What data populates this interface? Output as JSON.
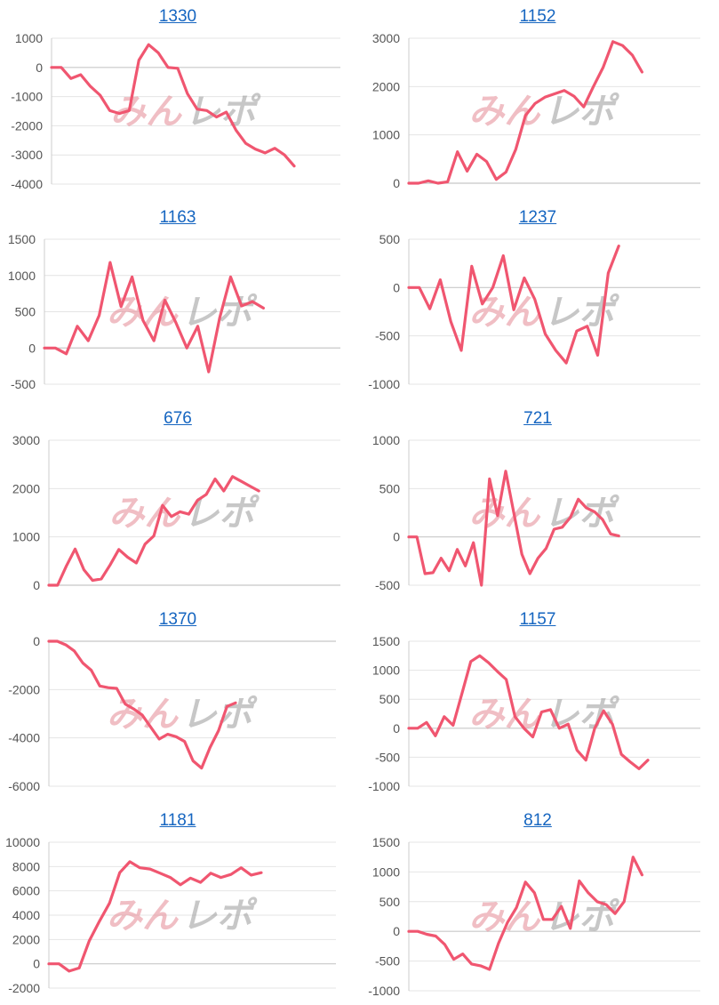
{
  "colors": {
    "line": "#f05670",
    "watermark_kana": "#e58a95",
    "watermark_latin": "#9a9a9a",
    "title_link": "#1565c0"
  },
  "watermark_icon": "minrepo-logo-watermark",
  "chart_data": [
    {
      "type": "line",
      "title": "1330",
      "ylim": [
        -4000,
        1000
      ],
      "yticks": [
        1000,
        0,
        -1000,
        -2000,
        -3000,
        -4000
      ],
      "values": [
        0,
        0,
        -380,
        -250,
        -650,
        -950,
        -1480,
        -1580,
        -1480,
        250,
        780,
        500,
        0,
        -30,
        -900,
        -1430,
        -1480,
        -1700,
        -1530,
        -2150,
        -2600,
        -2800,
        -2930,
        -2770,
        -3000,
        -3380
      ]
    },
    {
      "type": "line",
      "title": "1152",
      "ylim": [
        0,
        3000
      ],
      "yticks": [
        3000,
        2000,
        1000,
        0
      ],
      "values": [
        0,
        0,
        50,
        0,
        30,
        650,
        250,
        600,
        450,
        80,
        230,
        700,
        1400,
        1650,
        1780,
        1850,
        1920,
        1800,
        1580,
        2000,
        2400,
        2930,
        2850,
        2650,
        2300
      ]
    },
    {
      "type": "line",
      "title": "1163",
      "ylim": [
        -500,
        1500
      ],
      "yticks": [
        1500,
        1000,
        500,
        0,
        -500
      ],
      "values": [
        0,
        0,
        -80,
        300,
        100,
        450,
        1180,
        570,
        980,
        380,
        100,
        660,
        350,
        0,
        300,
        -330,
        410,
        980,
        580,
        640,
        550
      ]
    },
    {
      "type": "line",
      "title": "1237",
      "ylim": [
        -1000,
        500
      ],
      "yticks": [
        500,
        0,
        -500,
        -1000
      ],
      "values": [
        0,
        0,
        -220,
        80,
        -350,
        -650,
        220,
        -170,
        0,
        330,
        -230,
        100,
        -120,
        -480,
        -650,
        -780,
        -450,
        -400,
        -700,
        150,
        430
      ]
    },
    {
      "type": "line",
      "title": "676",
      "ylim": [
        0,
        3000
      ],
      "yticks": [
        3000,
        2000,
        1000,
        0
      ],
      "values": [
        0,
        0,
        400,
        750,
        320,
        100,
        130,
        420,
        740,
        580,
        460,
        850,
        1020,
        1650,
        1420,
        1520,
        1470,
        1760,
        1880,
        2200,
        1950,
        2250,
        2150,
        2050,
        1950
      ]
    },
    {
      "type": "line",
      "title": "721",
      "ylim": [
        -500,
        1000
      ],
      "yticks": [
        1000,
        500,
        0,
        -500
      ],
      "values": [
        0,
        0,
        -380,
        -370,
        -220,
        -350,
        -130,
        -300,
        -60,
        -500,
        600,
        220,
        680,
        250,
        -180,
        -380,
        -220,
        -120,
        80,
        100,
        200,
        390,
        300,
        260,
        180,
        30,
        10
      ]
    },
    {
      "type": "line",
      "title": "1370",
      "ylim": [
        -6000,
        0
      ],
      "yticks": [
        0,
        -2000,
        -4000,
        -6000
      ],
      "values": [
        0,
        0,
        -150,
        -400,
        -900,
        -1200,
        -1850,
        -1920,
        -1950,
        -2600,
        -2800,
        -3050,
        -3550,
        -4050,
        -3850,
        -3950,
        -4150,
        -4950,
        -5250,
        -4400,
        -3700,
        -2700,
        -2550
      ]
    },
    {
      "type": "line",
      "title": "1157",
      "ylim": [
        -1000,
        1500
      ],
      "yticks": [
        1500,
        1000,
        500,
        0,
        -500,
        -1000
      ],
      "values": [
        0,
        0,
        100,
        -130,
        200,
        50,
        600,
        1150,
        1250,
        1130,
        980,
        840,
        200,
        0,
        -150,
        280,
        320,
        0,
        70,
        -380,
        -550,
        0,
        300,
        70,
        -450,
        -580,
        -700,
        -550
      ]
    },
    {
      "type": "line",
      "title": "1181",
      "ylim": [
        -2000,
        10000
      ],
      "yticks": [
        10000,
        8000,
        6000,
        4000,
        2000,
        0,
        -2000
      ],
      "values": [
        0,
        0,
        -600,
        -350,
        1900,
        3500,
        5000,
        7500,
        8400,
        7900,
        7800,
        7450,
        7100,
        6500,
        7050,
        6700,
        7450,
        7100,
        7350,
        7900,
        7300,
        7500
      ]
    },
    {
      "type": "line",
      "title": "812",
      "ylim": [
        -1000,
        1500
      ],
      "yticks": [
        1500,
        1000,
        500,
        0,
        -500,
        -1000
      ],
      "values": [
        0,
        0,
        -50,
        -80,
        -220,
        -470,
        -380,
        -550,
        -580,
        -640,
        -200,
        150,
        400,
        830,
        650,
        200,
        200,
        420,
        50,
        850,
        650,
        500,
        450,
        300,
        500,
        1250,
        950
      ]
    }
  ]
}
